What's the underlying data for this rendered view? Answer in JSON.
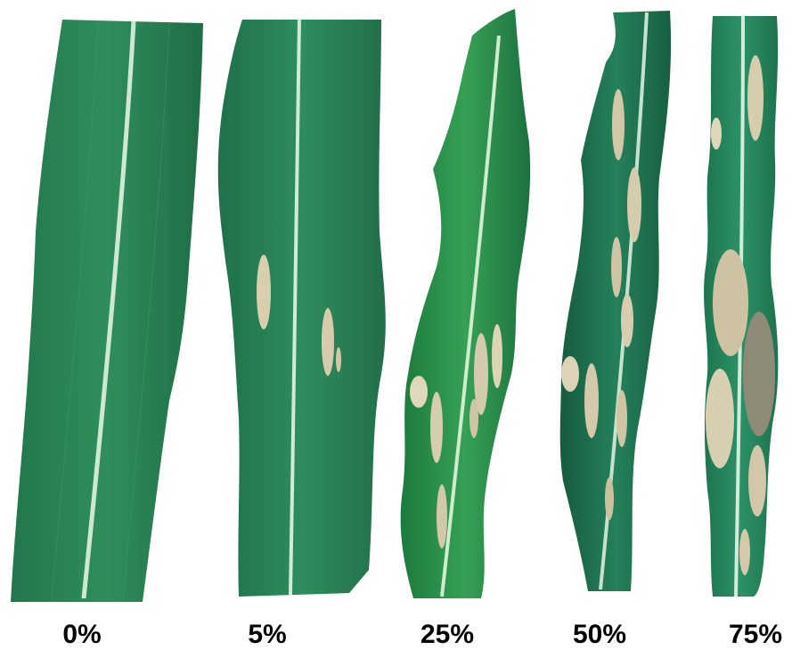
{
  "figure": {
    "panels": [
      {
        "label": "0%"
      },
      {
        "label": "5%"
      },
      {
        "label": "25%"
      },
      {
        "label": "50%"
      },
      {
        "label": "75%"
      }
    ]
  },
  "colors": {
    "leaf_green": "#2f8a58",
    "leaf_dark": "#1f6b45",
    "midrib": "#d6ecd8",
    "lesion": "#d8cdb0",
    "background": "#ffffff",
    "label_text": "#000000"
  }
}
